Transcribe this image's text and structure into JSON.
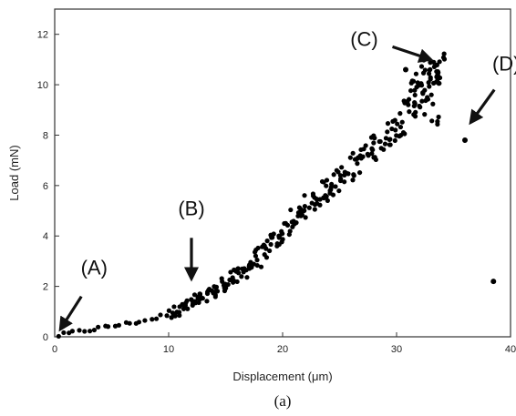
{
  "chart_data": {
    "type": "scatter",
    "xlabel": "Displacement (μm)",
    "ylabel": "Load (mN)",
    "xlim": [
      0,
      40
    ],
    "ylim": [
      0,
      13
    ],
    "xticks": [
      0,
      10,
      20,
      30,
      40
    ],
    "yticks": [
      0,
      2,
      4,
      6,
      8,
      10,
      12
    ],
    "grid": false,
    "caption": "(a)",
    "marker_color": "#000000",
    "curve": {
      "x": [
        0.3,
        2,
        4,
        6,
        8,
        10,
        12,
        14,
        16,
        18,
        20,
        22,
        24,
        26,
        28,
        30,
        31,
        32,
        33,
        34
      ],
      "y": [
        0.05,
        0.2,
        0.35,
        0.5,
        0.65,
        0.9,
        1.3,
        1.8,
        2.4,
        3.2,
        4.1,
        5.1,
        5.9,
        6.7,
        7.5,
        8.4,
        8.9,
        9.6,
        10.3,
        10.8
      ]
    },
    "outlier_points": [
      {
        "x": 36.0,
        "y": 7.8
      },
      {
        "x": 38.5,
        "y": 2.2
      },
      {
        "x": 30.8,
        "y": 10.6
      }
    ],
    "annotations": [
      {
        "label": "(A)",
        "point": [
          0.5,
          0.3
        ]
      },
      {
        "label": "(B)",
        "point": [
          12,
          2.3
        ]
      },
      {
        "label": "(C)",
        "point": [
          33.0,
          11.0
        ]
      },
      {
        "label": "(D)",
        "point": [
          36.5,
          8.5
        ]
      }
    ]
  }
}
